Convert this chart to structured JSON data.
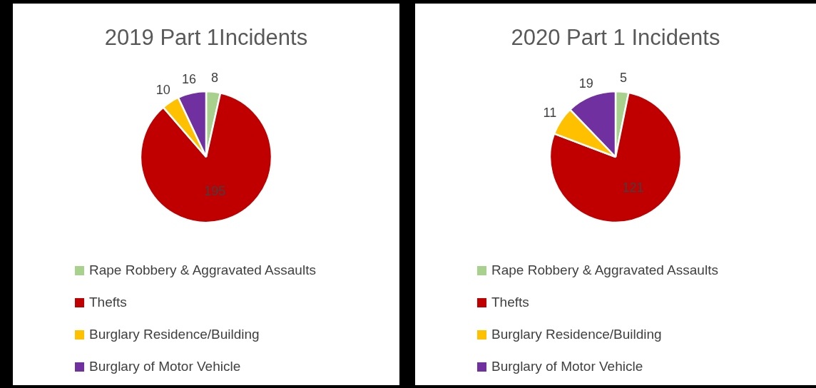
{
  "chart_data": [
    {
      "type": "pie",
      "title": "2019 Part 1Incidents",
      "categories": [
        "Rape Robbery & Aggravated Assaults",
        "Thefts",
        "Burglary Residence/Building",
        "Burglary of Motor Vehicle"
      ],
      "values": [
        8,
        195,
        10,
        16
      ],
      "colors": [
        "#a9d18e",
        "#c00000",
        "#ffc000",
        "#7030a0"
      ],
      "legend": "bottom",
      "data_labels": true
    },
    {
      "type": "pie",
      "title": "2020 Part 1 Incidents",
      "categories": [
        "Rape Robbery & Aggravated Assaults",
        "Thefts",
        "Burglary Residence/Building",
        "Burglary of Motor Vehicle"
      ],
      "values": [
        5,
        121,
        11,
        19
      ],
      "colors": [
        "#a9d18e",
        "#c00000",
        "#ffc000",
        "#7030a0"
      ],
      "legend": "bottom",
      "data_labels": true
    }
  ]
}
